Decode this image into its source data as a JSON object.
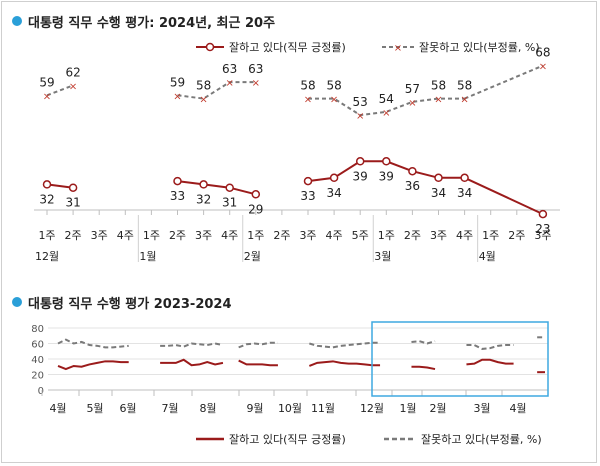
{
  "colors": {
    "approve": "#9b1b1b",
    "disapprove": "#7a7a7a",
    "accent": "#2a9fd8",
    "highlight": "#3fa9e0"
  },
  "legend": {
    "approve": "잘하고 있다(직무 긍정률)",
    "disapprove": "잘못하고 있다(부정률, %)",
    "approve_bottom": "잘하고 있다(직무 긍정률)",
    "disapprove_bottom": "잘못하고 있다(부정률, %)"
  },
  "chart_data": [
    {
      "type": "line",
      "title": "대통령 직무 수행 평가: 2024년, 최근 20주",
      "x": [
        "1주",
        "2주",
        "3주",
        "4주",
        "1주",
        "2주",
        "3주",
        "4주",
        "1주",
        "2주",
        "3주",
        "4주",
        "5주",
        "1주",
        "2주",
        "3주",
        "4주",
        "1주",
        "2주",
        "3주"
      ],
      "month_labels": [
        {
          "label": "12월",
          "index": 0
        },
        {
          "label": "1월",
          "index": 4
        },
        {
          "label": "2월",
          "index": 8
        },
        {
          "label": "3월",
          "index": 13
        },
        {
          "label": "4월",
          "index": 17
        }
      ],
      "series": [
        {
          "name": "잘하고 있다(직무 긍정률)",
          "values": [
            32,
            31,
            null,
            null,
            null,
            33,
            32,
            31,
            29,
            null,
            33,
            34,
            39,
            39,
            36,
            34,
            34,
            null,
            null,
            23
          ]
        },
        {
          "name": "잘못하고 있다(부정률, %)",
          "values": [
            59,
            62,
            null,
            null,
            null,
            59,
            58,
            63,
            63,
            null,
            58,
            58,
            53,
            54,
            57,
            58,
            58,
            null,
            null,
            68
          ]
        }
      ],
      "ylim": [
        0,
        100
      ]
    },
    {
      "type": "line",
      "title": "대통령 직무 수행 평가 2023-2024",
      "x_ticks": [
        "4월",
        "5월",
        "6월",
        "7월",
        "8월",
        "9월",
        "10월",
        "11월",
        "12월",
        "1월",
        "2월",
        "3월",
        "4월"
      ],
      "y_ticks": [
        0,
        20,
        40,
        60,
        80
      ],
      "ylim": [
        0,
        80
      ],
      "series": [
        {
          "name": "잘하고 있다(직무 긍정률)",
          "values": [
            31,
            27,
            31,
            30,
            33,
            35,
            37,
            37,
            36,
            36,
            null,
            null,
            null,
            35,
            35,
            35,
            39,
            32,
            33,
            36,
            33,
            35,
            null,
            38,
            33,
            33,
            33,
            32,
            32,
            null,
            null,
            null,
            31,
            35,
            36,
            37,
            35,
            34,
            34,
            33,
            32,
            32,
            null,
            null,
            null,
            30,
            30,
            29,
            27,
            null,
            null,
            null,
            33,
            34,
            39,
            39,
            36,
            34,
            34,
            null,
            null,
            23,
            23
          ]
        },
        {
          "name": "잘못하고 있다(부정률, %)",
          "values": [
            60,
            65,
            60,
            62,
            58,
            57,
            55,
            55,
            56,
            57,
            null,
            null,
            null,
            57,
            57,
            58,
            56,
            60,
            59,
            58,
            60,
            58,
            null,
            55,
            59,
            60,
            59,
            61,
            61,
            null,
            null,
            null,
            60,
            57,
            56,
            55,
            57,
            58,
            59,
            60,
            61,
            61,
            null,
            null,
            null,
            62,
            63,
            60,
            63,
            null,
            null,
            null,
            58,
            58,
            53,
            54,
            57,
            58,
            58,
            null,
            null,
            68,
            68
          ]
        }
      ]
    }
  ]
}
